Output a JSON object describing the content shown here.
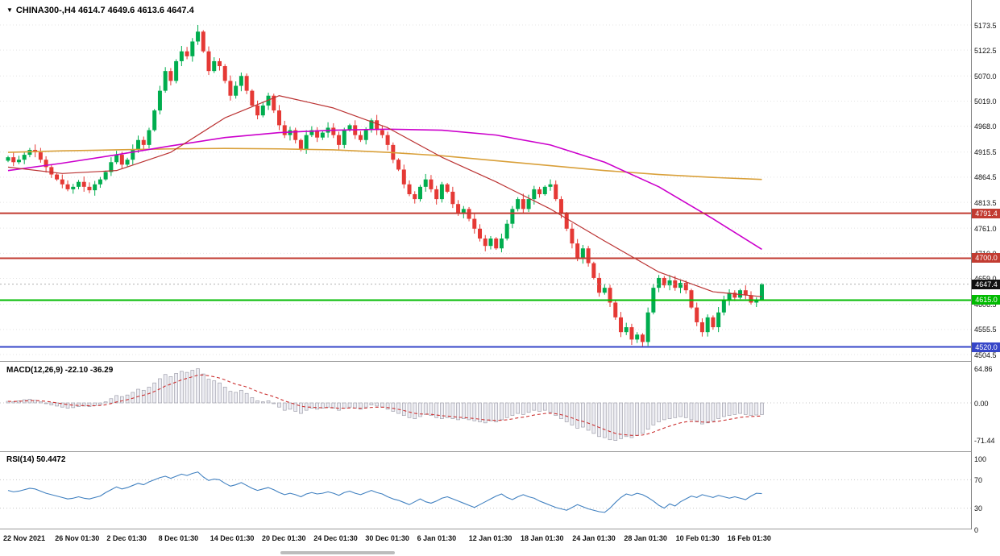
{
  "header": {
    "dropdown_icon": "▼",
    "symbol_info": "CHINA300-,H4 4614.7 4649.6 4613.6 4647.4"
  },
  "price_pane": {
    "y_ticks": [
      "5173.5",
      "5122.5",
      "5070.0",
      "5019.0",
      "4968.0",
      "4915.5",
      "4864.5",
      "4813.5",
      "4761.0",
      "4710.0",
      "4659.0",
      "4606.5",
      "4555.5",
      "4504.5"
    ],
    "levels": [
      {
        "value": 4791.4,
        "label": "4791.4",
        "color": "#c23b31",
        "width": 2
      },
      {
        "value": 4700.0,
        "label": "4700.0",
        "color": "#c23b31",
        "width": 2
      },
      {
        "value": 4615.0,
        "label": "4615.0",
        "color": "#00bb00",
        "width": 2
      },
      {
        "value": 4520.0,
        "label": "4520.0",
        "color": "#3646c8",
        "width": 2
      }
    ],
    "current_price_badge": {
      "value": 4647.4,
      "label": "4647.4",
      "color": "#111111"
    }
  },
  "indicators": {
    "macd": {
      "label": "MACD(12,26,9) -22.10 -36.29",
      "ticks": [
        {
          "label": "64.86",
          "value": 64.86
        },
        {
          "label": "0.00",
          "value": 0
        },
        {
          "label": "-71.44",
          "value": -71.44
        }
      ]
    },
    "rsi": {
      "label": "RSI(14) 50.4472",
      "ticks": [
        {
          "label": "100",
          "value": 100
        },
        {
          "label": "70",
          "value": 70
        },
        {
          "label": "30",
          "value": 30
        },
        {
          "label": "0",
          "value": 0
        }
      ],
      "level_lines": [
        70,
        30
      ]
    }
  },
  "time_axis": {
    "labels": [
      "22 Nov 2021",
      "26 Nov 01:30",
      "2 Dec 01:30",
      "8 Dec 01:30",
      "14 Dec 01:30",
      "20 Dec 01:30",
      "24 Dec 01:30",
      "30 Dec 01:30",
      "6 Jan 01:30",
      "12 Jan 01:30",
      "18 Jan 01:30",
      "24 Jan 01:30",
      "28 Jan 01:30",
      "10 Feb 01:30",
      "16 Feb 01:30"
    ]
  },
  "colors": {
    "candle_up": "#00ad4e",
    "candle_down": "#e53935",
    "grid": "#e4e4e4",
    "macd_hist_stroke": "#a0a0ac",
    "macd_hist_fill": "#ececf2",
    "macd_signal": "#cc3333",
    "rsi_line": "#4080c0",
    "axis_line": "#808080"
  },
  "chart_data": {
    "type": "candlestick+indicators",
    "symbol": "CHINA300-",
    "timeframe": "H4",
    "title": "CHINA300-,H4 4614.7 4649.6 4613.6 4647.4",
    "last_bar": {
      "open": 4614.7,
      "high": 4649.6,
      "low": 4613.6,
      "close": 4647.4
    },
    "price_axis": {
      "min": 4504.5,
      "max": 5173.5
    },
    "candles": {
      "first_open": 4898,
      "closes": [
        4905,
        4895,
        4900,
        4910,
        4920,
        4915,
        4900,
        4885,
        4870,
        4860,
        4850,
        4840,
        4845,
        4855,
        4845,
        4838,
        4850,
        4860,
        4875,
        4895,
        4910,
        4890,
        4900,
        4920,
        4940,
        4930,
        4960,
        5000,
        5040,
        5080,
        5060,
        5100,
        5120,
        5110,
        5140,
        5160,
        5120,
        5080,
        5100,
        5090,
        5060,
        5030,
        5050,
        5070,
        5040,
        5010,
        4990,
        5010,
        5030,
        5000,
        4970,
        4950,
        4960,
        4940,
        4920,
        4950,
        4960,
        4945,
        4955,
        4965,
        4950,
        4930,
        4960,
        4970,
        4950,
        4940,
        4960,
        4980,
        4960,
        4950,
        4930,
        4900,
        4880,
        4850,
        4830,
        4820,
        4845,
        4860,
        4840,
        4820,
        4850,
        4835,
        4810,
        4790,
        4800,
        4780,
        4760,
        4740,
        4725,
        4740,
        4720,
        4740,
        4770,
        4800,
        4820,
        4800,
        4820,
        4840,
        4830,
        4845,
        4850,
        4820,
        4790,
        4760,
        4730,
        4700,
        4720,
        4690,
        4660,
        4630,
        4640,
        4610,
        4580,
        4550,
        4560,
        4535,
        4545,
        4530,
        4590,
        4640,
        4660,
        4645,
        4655,
        4640,
        4650,
        4635,
        4600,
        4570,
        4550,
        4580,
        4560,
        4590,
        4615,
        4630,
        4620,
        4635,
        4625,
        4610,
        4614.7,
        4647.4
      ],
      "overrides": {
        "35": {
          "h": 5173.5
        },
        "115": {
          "l": 4524
        },
        "117": {
          "l": 4521
        },
        "128": {
          "l": 4541
        },
        "139": {
          "o": 4614.7,
          "h": 4649.6,
          "l": 4613.6,
          "c": 4647.4
        }
      }
    },
    "moving_averages": [
      {
        "name": "slow-ma-orange",
        "color": "#d9a03a",
        "width": 1.6,
        "indices": [
          0,
          10,
          20,
          30,
          40,
          50,
          60,
          70,
          80,
          90,
          100,
          110,
          120,
          130,
          139
        ],
        "values": [
          4915,
          4918,
          4920,
          4922,
          4923,
          4922,
          4920,
          4915,
          4908,
          4898,
          4888,
          4878,
          4870,
          4864,
          4860
        ]
      },
      {
        "name": "mid-ma-magenta",
        "color": "#cc00cc",
        "width": 1.6,
        "indices": [
          0,
          10,
          20,
          30,
          40,
          50,
          60,
          70,
          80,
          90,
          100,
          110,
          120,
          130,
          139
        ],
        "values": [
          4878,
          4893,
          4910,
          4928,
          4945,
          4955,
          4960,
          4962,
          4960,
          4950,
          4930,
          4895,
          4845,
          4780,
          4718
        ]
      },
      {
        "name": "fast-ma-red",
        "color": "#bb3333",
        "width": 1.2,
        "indices": [
          0,
          10,
          20,
          30,
          40,
          50,
          60,
          70,
          80,
          90,
          100,
          110,
          120,
          130,
          139
        ],
        "values": [
          4885,
          4872,
          4878,
          4915,
          4985,
          5030,
          5005,
          4965,
          4905,
          4855,
          4800,
          4735,
          4672,
          4632,
          4622
        ]
      }
    ],
    "macd": {
      "current_macd": -22.1,
      "current_signal": -36.29,
      "range": [
        -71.44,
        64.86
      ],
      "histogram": [
        3,
        2,
        4,
        6,
        7,
        5,
        2,
        -1,
        -4,
        -6,
        -8,
        -10,
        -9,
        -7,
        -6,
        -7,
        -5,
        -3,
        2,
        8,
        14,
        12,
        15,
        20,
        26,
        24,
        30,
        38,
        46,
        54,
        50,
        56,
        60,
        58,
        62,
        64.86,
        55,
        45,
        42,
        38,
        30,
        22,
        20,
        24,
        18,
        10,
        4,
        2,
        4,
        0,
        -8,
        -14,
        -12,
        -16,
        -20,
        -14,
        -10,
        -12,
        -10,
        -8,
        -10,
        -14,
        -10,
        -8,
        -10,
        -12,
        -8,
        -4,
        -6,
        -8,
        -12,
        -16,
        -20,
        -24,
        -28,
        -30,
        -26,
        -22,
        -24,
        -28,
        -30,
        -28,
        -30,
        -32,
        -30,
        -32,
        -34,
        -36,
        -38,
        -34,
        -36,
        -32,
        -28,
        -24,
        -20,
        -22,
        -18,
        -14,
        -16,
        -14,
        -18,
        -24,
        -30,
        -36,
        -42,
        -48,
        -46,
        -52,
        -58,
        -64,
        -66,
        -70,
        -71.44,
        -68,
        -64,
        -66,
        -62,
        -58,
        -50,
        -42,
        -36,
        -32,
        -30,
        -28,
        -26,
        -28,
        -32,
        -36,
        -40,
        -38,
        -34,
        -30,
        -26,
        -24,
        -22,
        -20,
        -22,
        -24,
        -23,
        -22.1
      ]
    },
    "rsi": {
      "current": 50.4472,
      "range": [
        0,
        100
      ],
      "values": [
        55,
        53,
        54,
        56,
        58,
        57,
        54,
        51,
        49,
        47,
        45,
        43,
        44,
        46,
        44,
        43,
        45,
        47,
        52,
        56,
        60,
        57,
        59,
        62,
        65,
        63,
        67,
        70,
        73,
        75,
        72,
        75,
        78,
        76,
        79,
        81,
        74,
        69,
        71,
        70,
        65,
        61,
        63,
        66,
        62,
        58,
        55,
        57,
        59,
        56,
        52,
        49,
        51,
        49,
        46,
        50,
        52,
        50,
        51,
        53,
        51,
        48,
        52,
        54,
        51,
        49,
        52,
        55,
        52,
        50,
        46,
        43,
        41,
        38,
        35,
        39,
        43,
        39,
        37,
        40,
        44,
        46,
        43,
        40,
        37,
        34,
        31,
        35,
        39,
        43,
        47,
        50,
        45,
        42,
        46,
        49,
        46,
        44,
        40,
        37,
        34,
        31,
        29,
        27,
        31,
        35,
        32,
        29,
        27,
        25,
        24,
        30,
        38,
        45,
        50,
        48,
        51,
        49,
        45,
        40,
        34,
        30,
        36,
        33,
        39,
        43,
        47,
        45,
        49,
        47,
        45,
        48,
        46,
        44,
        46,
        44,
        42,
        47,
        51,
        50.45
      ]
    }
  }
}
